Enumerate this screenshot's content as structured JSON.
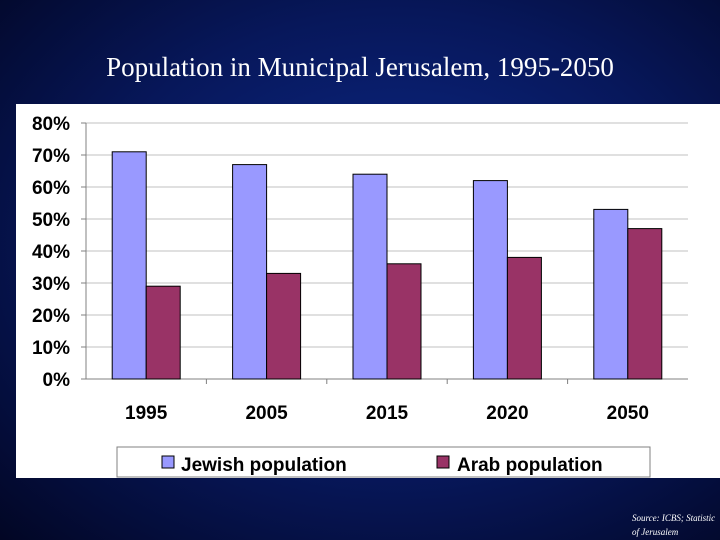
{
  "slide": {
    "title": "Population in Municipal Jerusalem, 1995-2050",
    "source_line1": "Source: ICBS; Statistic",
    "source_line2": "of Jerusalem"
  },
  "chart_data": {
    "type": "bar",
    "title": "",
    "xlabel": "",
    "ylabel": "",
    "categories": [
      "1995",
      "2005",
      "2015",
      "2020",
      "2050"
    ],
    "series": [
      {
        "name": "Jewish population",
        "values": [
          71,
          67,
          64,
          62,
          53
        ],
        "color": "#9999ff"
      },
      {
        "name": "Arab population",
        "values": [
          29,
          33,
          36,
          38,
          47
        ],
        "color": "#993366"
      }
    ],
    "ylim": [
      0,
      80
    ],
    "yticks": [
      "0%",
      "10%",
      "20%",
      "30%",
      "40%",
      "50%",
      "60%",
      "70%",
      "80%"
    ],
    "grid": true,
    "legend": "bottom"
  }
}
